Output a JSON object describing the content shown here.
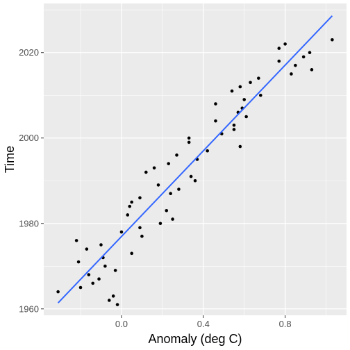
{
  "chart_data": {
    "type": "scatter",
    "title": "",
    "xlabel": "Anomaly (deg C)",
    "ylabel": "Time",
    "xlim": [
      -0.38,
      1.1
    ],
    "ylim": [
      1958.5,
      2031.5
    ],
    "x_ticks": [
      0.0,
      0.4,
      0.8
    ],
    "x_tick_labels": [
      "0.0",
      "0.4",
      "0.8"
    ],
    "x_minor": [
      -0.2,
      0.2,
      0.6,
      1.0
    ],
    "y_ticks": [
      1960,
      1980,
      2000,
      2020
    ],
    "y_tick_labels": [
      "1960",
      "1980",
      "2000",
      "2020"
    ],
    "y_minor": [
      1970,
      1990,
      2010,
      2030
    ],
    "grid": true,
    "panel_color": "#ebebeb",
    "point_color": "#000000",
    "fit_color": "#3366ff",
    "series": [
      {
        "points": [
          [
            -0.31,
            1964
          ],
          [
            -0.22,
            1976
          ],
          [
            -0.21,
            1971
          ],
          [
            -0.2,
            1965
          ],
          [
            -0.17,
            1974
          ],
          [
            -0.16,
            1968
          ],
          [
            -0.14,
            1966
          ],
          [
            -0.11,
            1967
          ],
          [
            -0.1,
            1975
          ],
          [
            -0.09,
            1972
          ],
          [
            -0.08,
            1970
          ],
          [
            -0.06,
            1962
          ],
          [
            -0.04,
            1963
          ],
          [
            -0.03,
            1969
          ],
          [
            -0.02,
            1961
          ],
          [
            0.0,
            1978
          ],
          [
            0.03,
            1982
          ],
          [
            0.04,
            1984
          ],
          [
            0.05,
            1985
          ],
          [
            0.05,
            1973
          ],
          [
            0.09,
            1979
          ],
          [
            0.09,
            1986
          ],
          [
            0.1,
            1977
          ],
          [
            0.12,
            1992
          ],
          [
            0.16,
            1993
          ],
          [
            0.18,
            1989
          ],
          [
            0.19,
            1980
          ],
          [
            0.22,
            1983
          ],
          [
            0.23,
            1994
          ],
          [
            0.24,
            1987
          ],
          [
            0.25,
            1981
          ],
          [
            0.27,
            1996
          ],
          [
            0.28,
            1988
          ],
          [
            0.33,
            1999
          ],
          [
            0.33,
            2000
          ],
          [
            0.34,
            1991
          ],
          [
            0.36,
            1990
          ],
          [
            0.37,
            1995
          ],
          [
            0.42,
            1997
          ],
          [
            0.46,
            2008
          ],
          [
            0.46,
            2004
          ],
          [
            0.49,
            2001
          ],
          [
            0.54,
            2011
          ],
          [
            0.55,
            2002
          ],
          [
            0.55,
            2003
          ],
          [
            0.57,
            2006
          ],
          [
            0.58,
            2012
          ],
          [
            0.58,
            1998
          ],
          [
            0.59,
            2007
          ],
          [
            0.6,
            2009
          ],
          [
            0.61,
            2005
          ],
          [
            0.63,
            2013
          ],
          [
            0.67,
            2014
          ],
          [
            0.68,
            2010
          ],
          [
            0.77,
            2018
          ],
          [
            0.77,
            2021
          ],
          [
            0.8,
            2022
          ],
          [
            0.83,
            2015
          ],
          [
            0.85,
            2017
          ],
          [
            0.89,
            2019
          ],
          [
            0.92,
            2020
          ],
          [
            0.93,
            2016
          ],
          [
            1.03,
            2023
          ]
        ]
      }
    ],
    "fit_line": {
      "x": [
        -0.31,
        1.03
      ],
      "y": [
        1961.4,
        2028.6
      ]
    }
  }
}
